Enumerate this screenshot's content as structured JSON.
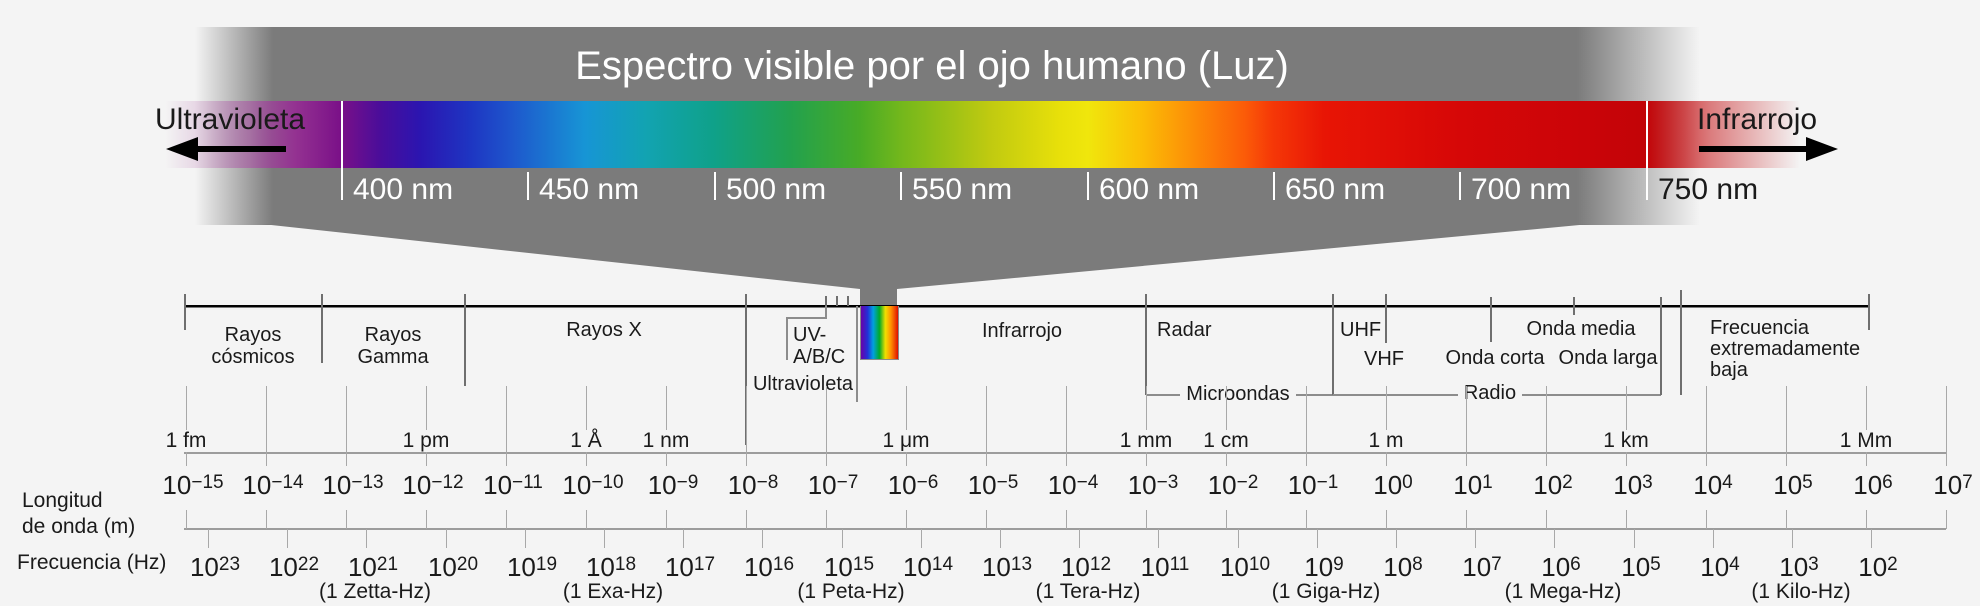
{
  "colors": {
    "background": "#f4f4f4",
    "banner_gray": "#7b7b7b",
    "line_black": "#000000",
    "divider_gray": "#6f6f6f",
    "tick_gray": "#a8a8a8",
    "title_text": "#ffffff"
  },
  "header": {
    "title": "Espectro visible por el ojo humano (Luz)",
    "left_label": "Ultravioleta",
    "right_label": "Infrarrojo"
  },
  "visible_band": {
    "nm_labels": [
      "400 nm",
      "450 nm",
      "500 nm",
      "550 nm",
      "600 nm",
      "650 nm",
      "700 nm",
      "750 nm"
    ]
  },
  "regions": {
    "cosmicos_1": "Rayos",
    "cosmicos_2": "cósmicos",
    "gamma_1": "Rayos",
    "gamma_2": "Gamma",
    "rayos_x": "Rayos X",
    "uv_1": "UV-",
    "uv_2": "A/B/C",
    "ultravioleta": "Ultravioleta",
    "infrarrojo": "Infrarrojo",
    "radar": "Radar",
    "microondas": "Microondas",
    "uhf": "UHF",
    "vhf": "VHF",
    "onda_corta": "Onda corta",
    "onda_media": "Onda media",
    "onda_larga": "Onda larga",
    "radio": "Radio",
    "elf_1": "Frecuencia",
    "elf_2": "extremadamente",
    "elf_3": "baja"
  },
  "wavelength_scale": {
    "label_line1": "Longitud",
    "label_line2": "de onda (m)",
    "base": "10",
    "entries": [
      {
        "exp": "−15",
        "unit": "1 fm"
      },
      {
        "exp": "−14"
      },
      {
        "exp": "−13"
      },
      {
        "exp": "−12",
        "unit": "1 pm"
      },
      {
        "exp": "−11"
      },
      {
        "exp": "−10",
        "unit": "1 Å"
      },
      {
        "exp": "−9",
        "unit": "1 nm"
      },
      {
        "exp": "−8"
      },
      {
        "exp": "−7"
      },
      {
        "exp": "−6",
        "unit": "1 μm"
      },
      {
        "exp": "−5"
      },
      {
        "exp": "−4"
      },
      {
        "exp": "−3",
        "unit": "1 mm"
      },
      {
        "exp": "−2",
        "unit": "1 cm"
      },
      {
        "exp": "−1"
      },
      {
        "exp": "0",
        "unit": "1 m"
      },
      {
        "exp": "1"
      },
      {
        "exp": "2"
      },
      {
        "exp": "3",
        "unit": "1 km"
      },
      {
        "exp": "4"
      },
      {
        "exp": "5"
      },
      {
        "exp": "6",
        "unit": "1 Mm"
      },
      {
        "exp": "7"
      }
    ]
  },
  "frequency_scale": {
    "label": "Frecuencia (Hz)",
    "base": "10",
    "entries": [
      {
        "exp": "23"
      },
      {
        "exp": "22"
      },
      {
        "exp": "21",
        "unit": "(1 Zetta-Hz)"
      },
      {
        "exp": "20"
      },
      {
        "exp": "19"
      },
      {
        "exp": "18",
        "unit": "(1 Exa-Hz)"
      },
      {
        "exp": "17"
      },
      {
        "exp": "16"
      },
      {
        "exp": "15",
        "unit": "(1 Peta-Hz)"
      },
      {
        "exp": "14"
      },
      {
        "exp": "13"
      },
      {
        "exp": "12",
        "unit": "(1 Tera-Hz)"
      },
      {
        "exp": "11"
      },
      {
        "exp": "10"
      },
      {
        "exp": "9",
        "unit": "(1 Giga-Hz)"
      },
      {
        "exp": "8"
      },
      {
        "exp": "7"
      },
      {
        "exp": "6",
        "unit": "(1 Mega-Hz)"
      },
      {
        "exp": "5"
      },
      {
        "exp": "4"
      },
      {
        "exp": "3",
        "unit": "(1 Kilo-Hz)"
      },
      {
        "exp": "2"
      }
    ]
  }
}
